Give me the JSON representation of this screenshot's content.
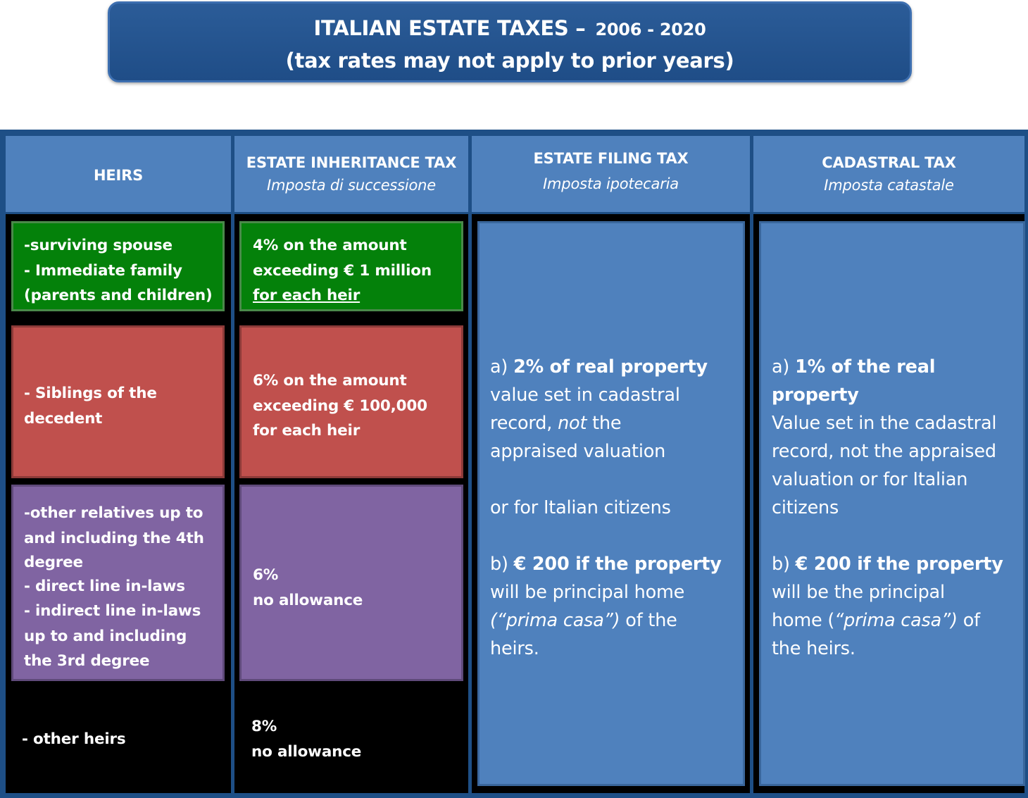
{
  "title": {
    "line1": "ITALIAN ESTATE TAXES –",
    "years": "2006 - 2020",
    "line2": "(tax rates may not apply to prior years)"
  },
  "headers": {
    "heirs": "HEIRS",
    "inheritance": {
      "title": "ESTATE INHERITANCE TAX",
      "subtitle": "Imposta di successione"
    },
    "filing": {
      "title": "ESTATE FILING TAX",
      "subtitle": "Imposta ipotecaria"
    },
    "cadastral": {
      "title": "CADASTRAL TAX",
      "subtitle": "Imposta catastale"
    }
  },
  "rows": [
    {
      "heirs": [
        "-surviving spouse",
        "- Immediate family",
        "(parents and children)"
      ],
      "rate": [
        "4% on the amount",
        "exceeding € 1 million",
        "for each heir"
      ],
      "color": "#04810a"
    },
    {
      "heirs": [
        "- Siblings of the",
        "decedent"
      ],
      "rate": [
        "6% on the amount",
        "exceeding € 100,000",
        "for each heir"
      ],
      "color": "#c0504d"
    },
    {
      "heirs": [
        "-other relatives up to",
        "and including the 4th",
        "degree",
        "- direct line in-laws",
        "- indirect line in-laws",
        "up to and including",
        "the 3rd degree"
      ],
      "rate": [
        "6%",
        "no allowance"
      ],
      "color": "#8064a2"
    },
    {
      "heirs": [
        "- other heirs"
      ],
      "rate": [
        "8%",
        "no allowance"
      ],
      "color": "#000000"
    }
  ],
  "filing": {
    "a_prefix": "a) ",
    "a_bold": "2% of  real property",
    "a_line2": "value set in cadastral",
    "a_line3_pre": "record, ",
    "a_line3_it": "not",
    "a_line3_post": " the",
    "a_line4": "appraised valuation",
    "a_line5": "or for Italian citizens",
    "b_prefix": "b) ",
    "b_bold": "€ 200 if the property",
    "b_line2": "will be principal home",
    "b_line3_it": "(“prima casa”)",
    "b_line3_post": " of the",
    "b_line4": "heirs."
  },
  "cadastral": {
    "a_prefix": "a) ",
    "a_bold1": "1% of the real",
    "a_bold2": "property",
    "a_line3": "Value set in the cadastral",
    "a_line4": "record, not the appraised",
    "a_line5": "valuation or for Italian",
    "a_line6": "citizens",
    "b_prefix": "b) ",
    "b_bold": "€ 200 if the property",
    "b_line2": "will be the principal",
    "b_line3_pre": "home (",
    "b_line3_it": "“prima casa”)",
    "b_line3_post": " of",
    "b_line4": "the heirs."
  },
  "colors": {
    "banner": "#1f4d87",
    "header": "#4f81bd",
    "frame": "#1e4f86",
    "green": "#04810a",
    "red": "#c0504d",
    "purple": "#8064a2",
    "blue": "#4f81bd"
  }
}
